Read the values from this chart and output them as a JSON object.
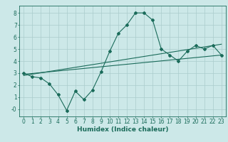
{
  "title": "",
  "xlabel": "Humidex (Indice chaleur)",
  "bg_color": "#cce8e8",
  "line_color": "#1a6b5a",
  "xlim": [
    -0.5,
    23.5
  ],
  "ylim": [
    -0.6,
    8.6
  ],
  "xticks": [
    0,
    1,
    2,
    3,
    4,
    5,
    6,
    7,
    8,
    9,
    10,
    11,
    12,
    13,
    14,
    15,
    16,
    17,
    18,
    19,
    20,
    21,
    22,
    23
  ],
  "yticks": [
    0,
    1,
    2,
    3,
    4,
    5,
    6,
    7,
    8
  ],
  "ytick_labels": [
    "-0",
    "1",
    "2",
    "3",
    "4",
    "5",
    "6",
    "7",
    "8"
  ],
  "data_x": [
    0,
    1,
    2,
    3,
    4,
    5,
    6,
    7,
    8,
    9,
    10,
    11,
    12,
    13,
    14,
    15,
    16,
    17,
    18,
    19,
    20,
    21,
    22,
    23
  ],
  "data_y": [
    3.0,
    2.7,
    2.6,
    2.1,
    1.2,
    -0.1,
    1.5,
    0.8,
    1.6,
    3.1,
    4.8,
    6.3,
    7.0,
    8.0,
    8.0,
    7.4,
    5.0,
    4.5,
    4.0,
    4.8,
    5.3,
    5.0,
    5.3,
    4.5
  ],
  "trend1_x": [
    0,
    23
  ],
  "trend1_y": [
    2.9,
    4.5
  ],
  "trend2_x": [
    0,
    23
  ],
  "trend2_y": [
    2.8,
    5.4
  ],
  "grid_color": "#aacccc",
  "tick_fontsize": 5.5,
  "label_fontsize": 6.5
}
